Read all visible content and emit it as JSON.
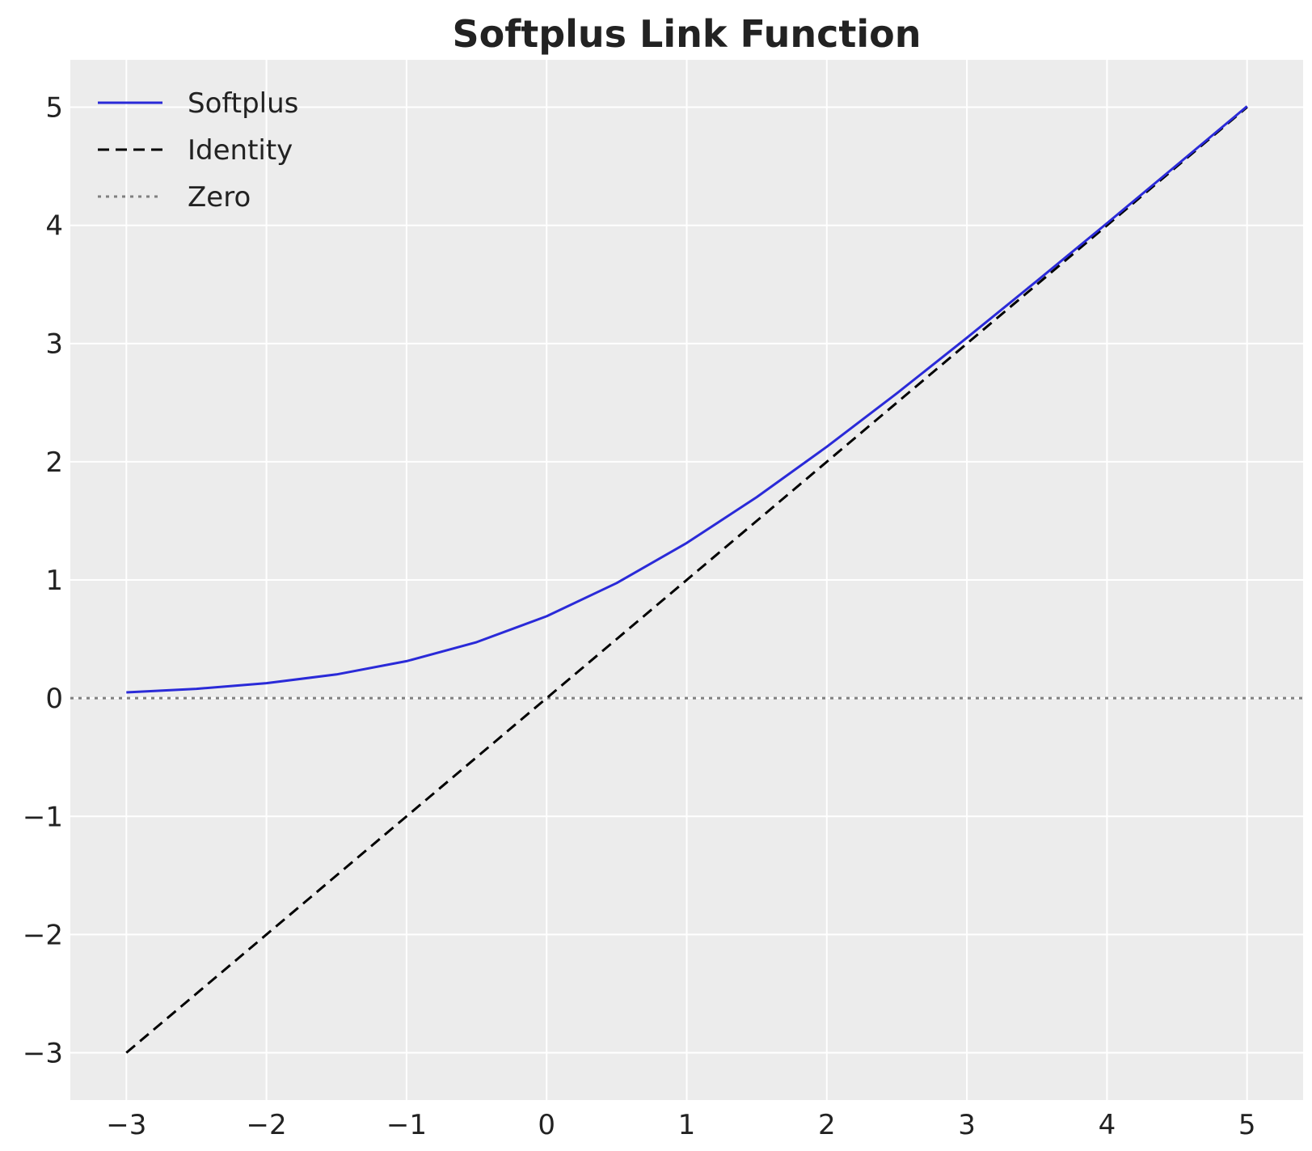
{
  "chart_data": {
    "type": "line",
    "title": "Softplus Link Function",
    "xlabel": "",
    "ylabel": "",
    "xlim": [
      -3.4,
      5.4
    ],
    "ylim": [
      -3.4,
      5.4
    ],
    "x_ticks": [
      -3,
      -2,
      -1,
      0,
      1,
      2,
      3,
      4,
      5
    ],
    "x_tick_labels": [
      "−3",
      "−2",
      "−1",
      "0",
      "1",
      "2",
      "3",
      "4",
      "5"
    ],
    "y_ticks": [
      -3,
      -2,
      -1,
      0,
      1,
      2,
      3,
      4,
      5
    ],
    "y_tick_labels": [
      "−3",
      "−2",
      "−1",
      "0",
      "1",
      "2",
      "3",
      "4",
      "5"
    ],
    "grid": true,
    "legend_position": "top-left",
    "series": [
      {
        "name": "Softplus",
        "style": "solid",
        "color": "#2a2ad8",
        "x": [
          -3,
          -2.5,
          -2,
          -1.5,
          -1,
          -0.5,
          0,
          0.5,
          1,
          1.5,
          2,
          2.5,
          3,
          3.5,
          4,
          4.5,
          5
        ],
        "y": [
          0.049,
          0.079,
          0.127,
          0.201,
          0.313,
          0.474,
          0.693,
          0.974,
          1.313,
          1.701,
          2.127,
          2.579,
          3.049,
          3.53,
          4.018,
          4.511,
          5.007
        ]
      },
      {
        "name": "Identity",
        "style": "dashed",
        "color": "#000000",
        "x": [
          -3,
          5
        ],
        "y": [
          -3,
          5
        ]
      },
      {
        "name": "Zero",
        "style": "dotted",
        "color": "#808080",
        "x": [
          -3.4,
          5.4
        ],
        "y": [
          0,
          0
        ]
      }
    ]
  },
  "colors": {
    "plot_background": "#ececec",
    "grid": "#ffffff"
  }
}
